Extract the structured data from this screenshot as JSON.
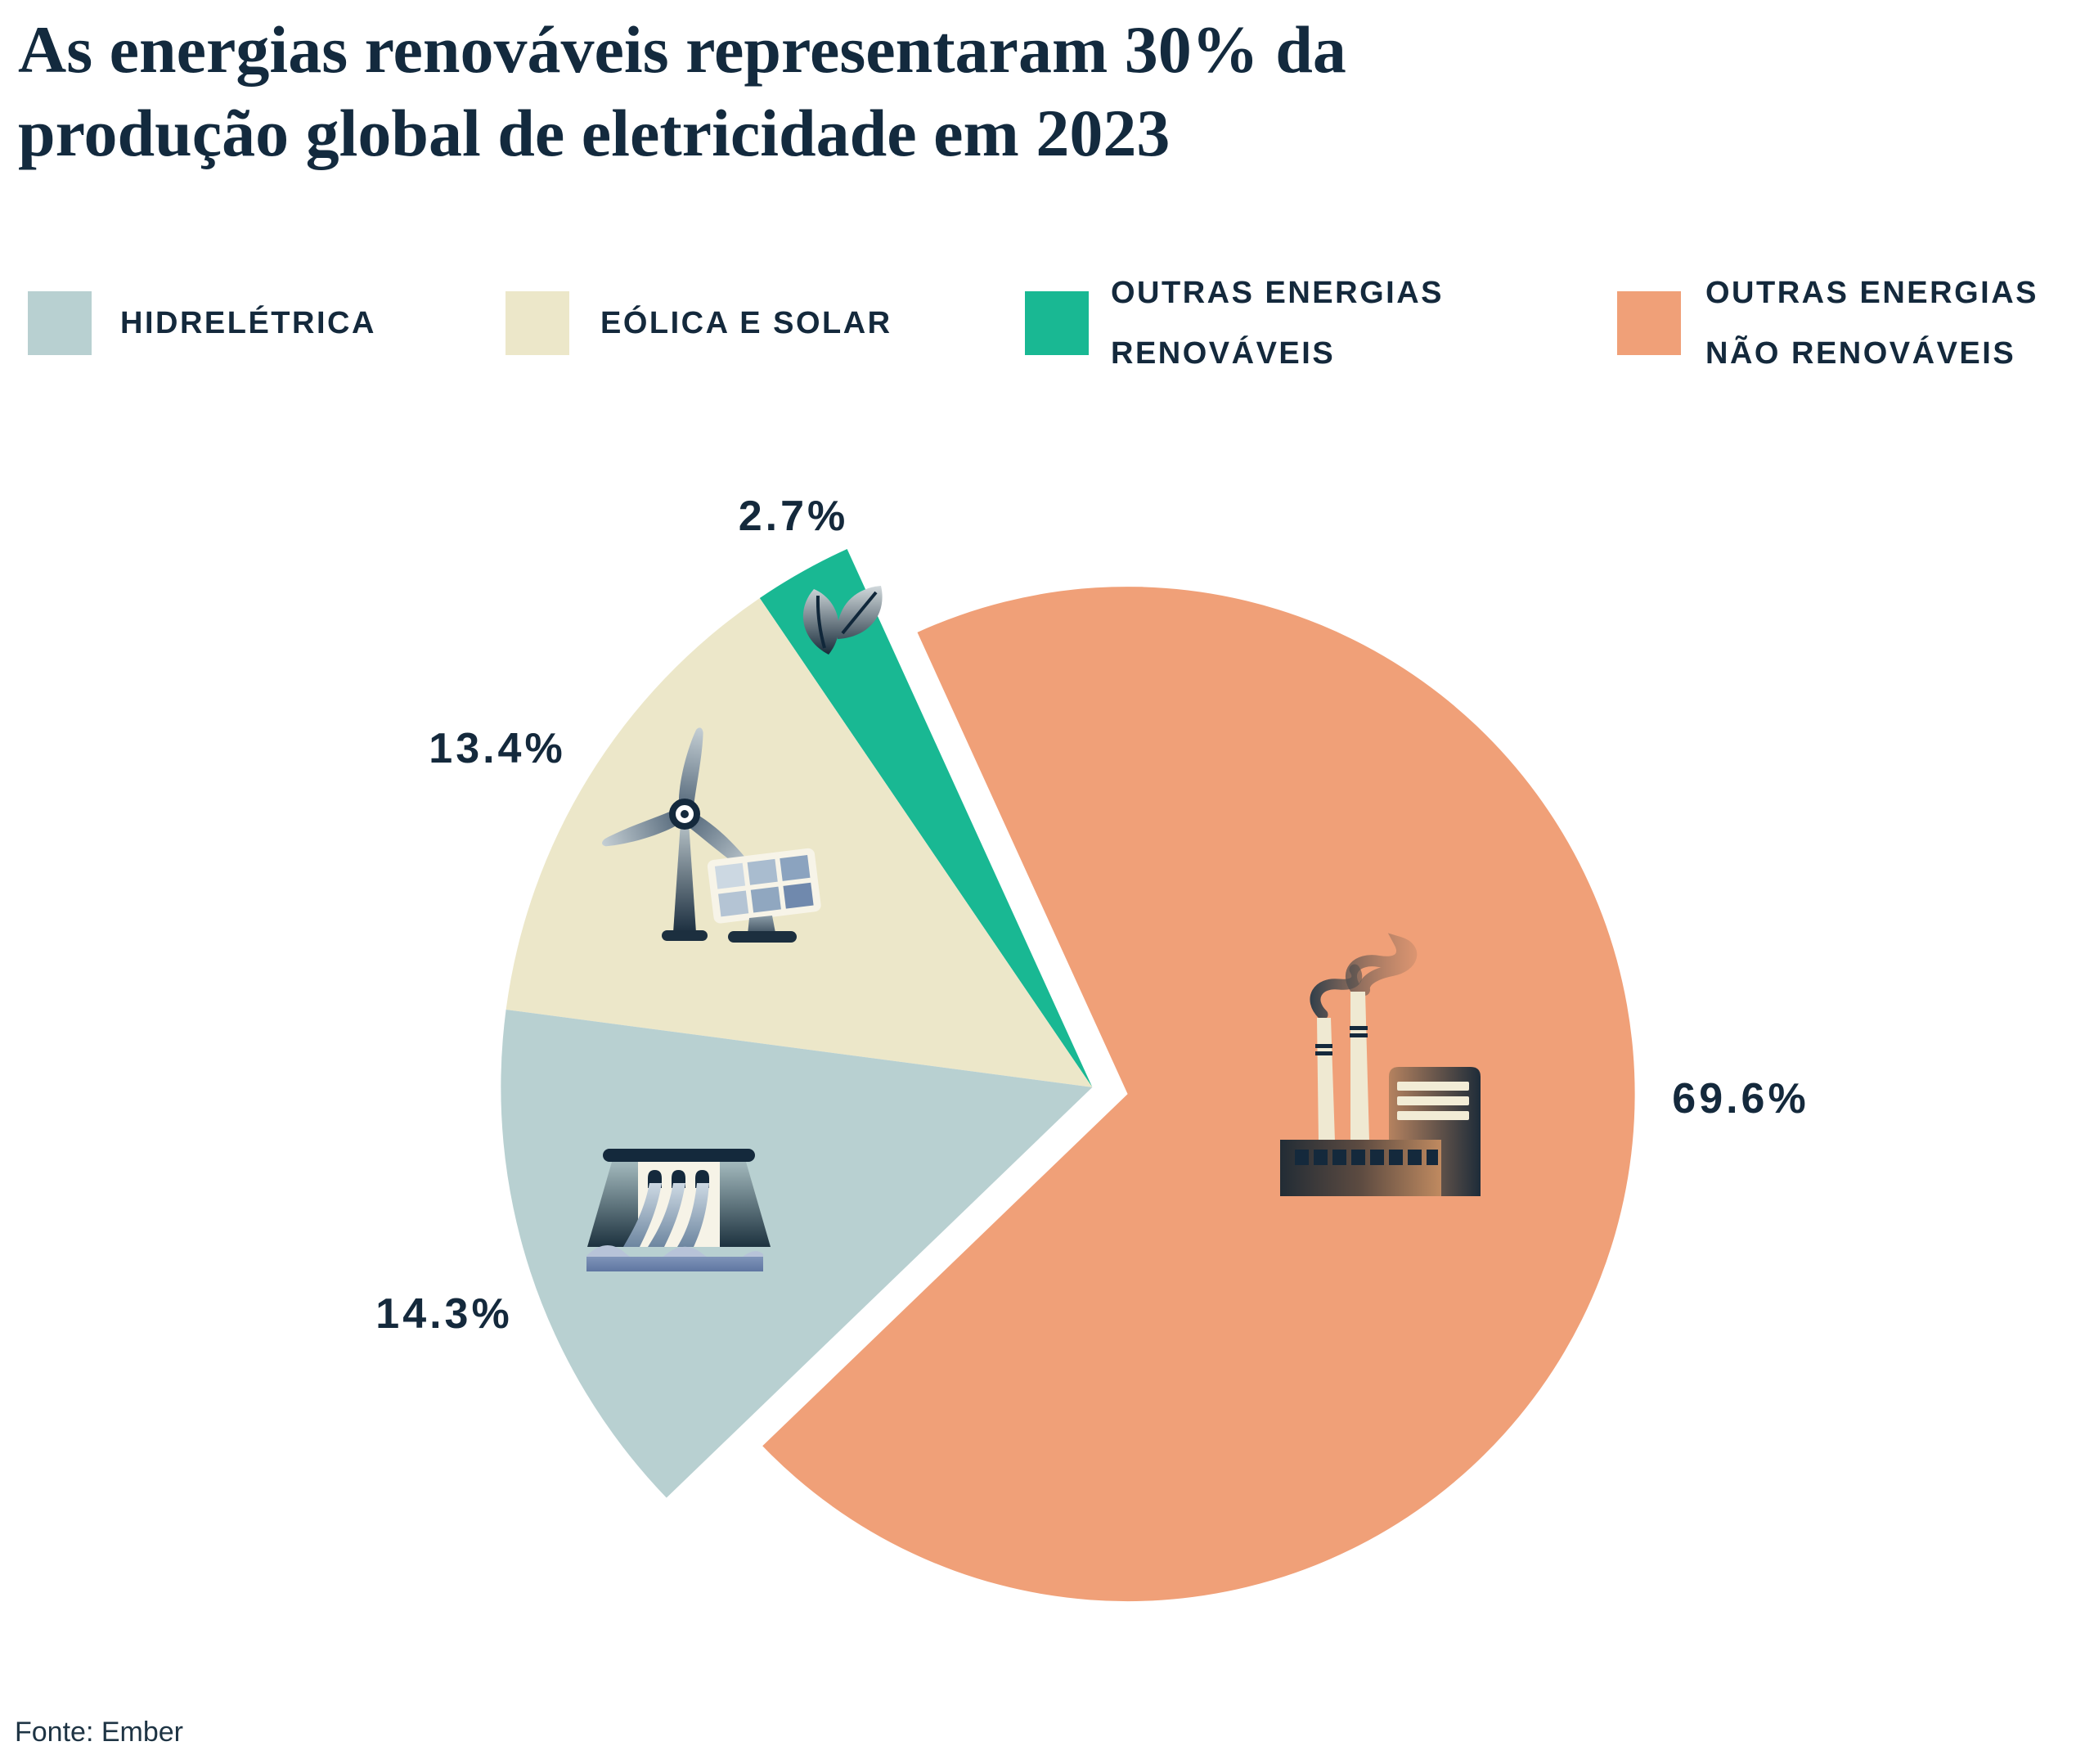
{
  "title": {
    "lines": [
      "As energias renováveis representaram 30% da",
      "produção global de eletricidade em 2023"
    ]
  },
  "legend": {
    "items": [
      {
        "label_lines": [
          "HIDRELÉTRICA"
        ],
        "color": "#b8d0d1"
      },
      {
        "label_lines": [
          "EÓLICA E SOLAR"
        ],
        "color": "#ece7c9"
      },
      {
        "label_lines": [
          "OUTRAS ENERGIAS",
          "RENOVÁVEIS"
        ],
        "color": "#19b893"
      },
      {
        "label_lines": [
          "OUTRAS ENERGIAS",
          "NÃO RENOVÁVEIS"
        ],
        "color": "#f0a078"
      }
    ]
  },
  "chart_data": {
    "type": "pie",
    "title": "As energias renováveis representaram 30% da produção global de eletricidade em 2023",
    "legend_position": "top",
    "start_angle_deg": 114.5,
    "counterclockwise_order": [
      "Outras energias renováveis",
      "Eólica e solar",
      "Hidrelétrica",
      "Outras energias não renováveis"
    ],
    "slices": [
      {
        "label": "Hidrelétrica",
        "value": 14.3,
        "display": "14.3%",
        "color": "#b8d0d1",
        "icon": "hydro-dam-icon"
      },
      {
        "label": "Eólica e solar",
        "value": 13.4,
        "display": "13.4%",
        "color": "#ece7c9",
        "icon": "wind-turbine-solar-panel-icon"
      },
      {
        "label": "Outras energias renováveis",
        "value": 2.7,
        "display": "2.7%",
        "color": "#19b893",
        "icon": "leaf-icon"
      },
      {
        "label": "Outras energias não renováveis",
        "value": 69.6,
        "display": "69.6%",
        "color": "#f0a078",
        "icon": "factory-icon"
      }
    ]
  },
  "source": "Fonte: Ember",
  "colors": {
    "text": "#14293c",
    "background": "#ffffff"
  }
}
